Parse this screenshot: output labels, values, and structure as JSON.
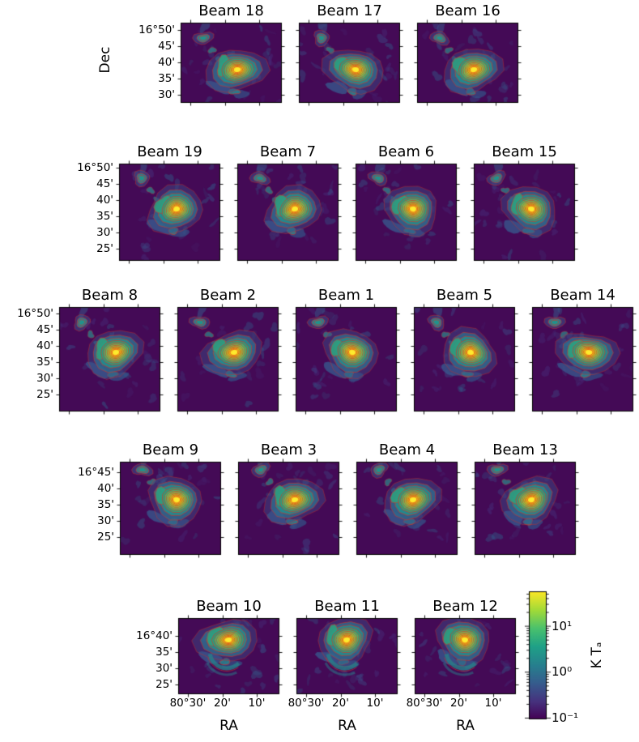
{
  "chart_data": {
    "type": "heatmap",
    "n_panels": 19,
    "arrangement": "hexagonal beam mosaic, rows of 3-4-5-4-3 panels",
    "colormap": "viridis",
    "contour_color": "red",
    "value_scale": "log",
    "value_range_K": [
      0.1,
      50
    ],
    "xlabel": "RA",
    "ylabel": "Dec",
    "x_tick_labels": [
      "80°30'",
      "20'",
      "10'"
    ],
    "rows": [
      {
        "beams": [
          "Beam 18",
          "Beam 17",
          "Beam 16"
        ],
        "y_tick_labels": [
          "16°50'",
          "45'",
          "40'",
          "35'",
          "30'"
        ]
      },
      {
        "beams": [
          "Beam 19",
          "Beam 7",
          "Beam 6",
          "Beam 15"
        ],
        "y_tick_labels": [
          "16°50'",
          "45'",
          "40'",
          "35'",
          "30'",
          "25'"
        ]
      },
      {
        "beams": [
          "Beam 8",
          "Beam 2",
          "Beam 1",
          "Beam 5",
          "Beam 14"
        ],
        "y_tick_labels": [
          "16°50'",
          "45'",
          "40'",
          "35'",
          "30'",
          "25'"
        ]
      },
      {
        "beams": [
          "Beam 9",
          "Beam 3",
          "Beam 4",
          "Beam 13"
        ],
        "y_tick_labels": [
          "16°45'",
          "40'",
          "35'",
          "30'",
          "25'"
        ]
      },
      {
        "beams": [
          "Beam 10",
          "Beam 11",
          "Beam 12"
        ],
        "y_tick_labels": [
          "16°40'",
          "35'",
          "30'",
          "25'"
        ]
      }
    ],
    "colorbar": {
      "label": "K Tₐ",
      "tick_labels": [
        "10¹",
        "10⁰",
        "10⁻¹"
      ],
      "scale": "log"
    },
    "source_peak": {
      "ra": "≈80°19'",
      "dec": "≈16°38'",
      "peak": "above 10 K (colorbar saturated)"
    },
    "secondary_source": {
      "ra": "≈80°27'",
      "dec": "≈16°47'"
    }
  }
}
